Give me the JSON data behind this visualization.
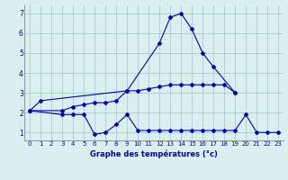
{
  "xlabel": "Graphe des températures (°c)",
  "background_color": "#daf0f0",
  "grid_color": "#aacccc",
  "line_color": "#0000bb",
  "ylim": [
    0.6,
    7.4
  ],
  "yticks": [
    1,
    2,
    3,
    4,
    5,
    6,
    7
  ],
  "xlim": [
    -0.5,
    23.5
  ],
  "main_x": [
    0,
    1,
    9,
    12,
    13,
    14,
    15,
    16,
    17,
    19
  ],
  "main_y": [
    2.1,
    2.6,
    3.1,
    5.5,
    6.8,
    7.0,
    6.2,
    5.0,
    4.3,
    3.0
  ],
  "lower_x": [
    0,
    3,
    4,
    5,
    6,
    7,
    8,
    9,
    10,
    11,
    12,
    13,
    14,
    15,
    16,
    17,
    18,
    19,
    20,
    21,
    22,
    23
  ],
  "lower_y": [
    2.1,
    1.9,
    1.9,
    1.9,
    0.9,
    1.0,
    1.4,
    1.9,
    1.1,
    1.1,
    1.1,
    1.1,
    1.1,
    1.1,
    1.1,
    1.1,
    1.1,
    1.1,
    1.9,
    1.0,
    1.0,
    1.0
  ],
  "upper_x": [
    0,
    3,
    4,
    5,
    6,
    7,
    8,
    9,
    10,
    11,
    12,
    13,
    14,
    15,
    16,
    17,
    18,
    19
  ],
  "upper_y": [
    2.1,
    2.1,
    2.3,
    2.4,
    2.5,
    2.5,
    2.6,
    3.1,
    3.1,
    3.2,
    3.3,
    3.4,
    3.4,
    3.4,
    3.4,
    3.4,
    3.4,
    3.0
  ],
  "tick_fontsize": 5.0,
  "xlabel_fontsize": 6.0
}
